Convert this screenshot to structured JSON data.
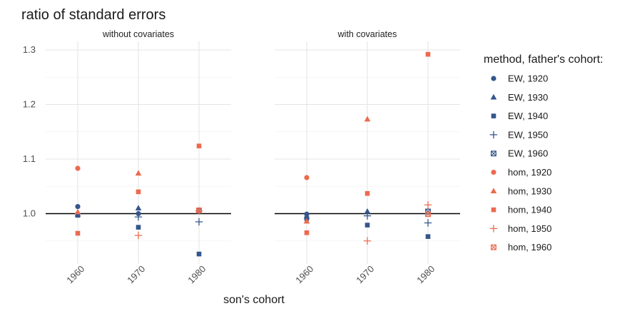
{
  "chart_data": {
    "type": "scatter",
    "title": "ratio of standard errors",
    "xlabel": "son's cohort",
    "ylabel": "",
    "x_categories": [
      "1960",
      "1970",
      "1980"
    ],
    "yticks": [
      "1.0",
      "1.1",
      "1.2",
      "1.3"
    ],
    "ylim": [
      0.905,
      1.315
    ],
    "reference_line_y": 1.0,
    "panels": [
      "without covariates",
      "with covariates"
    ],
    "legend": {
      "title": "method, father's cohort:",
      "placement": "right"
    },
    "colors": {
      "EW": "#34568b",
      "hom": "#ec6a4e"
    },
    "series": [
      {
        "name": "EW, 1920",
        "method": "EW",
        "shape": "circle",
        "values": [
          [
            1.013,
            1.0,
            null
          ],
          [
            0.999,
            null,
            null
          ]
        ]
      },
      {
        "name": "EW, 1930",
        "method": "EW",
        "shape": "triangle",
        "values": [
          [
            0.999,
            1.01,
            null
          ],
          [
            0.995,
            1.004,
            null
          ]
        ]
      },
      {
        "name": "EW, 1940",
        "method": "EW",
        "shape": "square",
        "values": [
          [
            0.997,
            0.975,
            0.926
          ],
          [
            0.991,
            0.979,
            0.958
          ]
        ]
      },
      {
        "name": "EW, 1950",
        "method": "EW",
        "shape": "plus",
        "values": [
          [
            null,
            0.994,
            0.985
          ],
          [
            null,
            0.996,
            0.983
          ]
        ]
      },
      {
        "name": "EW, 1960",
        "method": "EW",
        "shape": "boxx",
        "values": [
          [
            null,
            null,
            1.005
          ],
          [
            null,
            null,
            1.004
          ]
        ]
      },
      {
        "name": "hom, 1920",
        "method": "hom",
        "shape": "circle",
        "values": [
          [
            1.083,
            null,
            null
          ],
          [
            1.066,
            null,
            null
          ]
        ]
      },
      {
        "name": "hom, 1930",
        "method": "hom",
        "shape": "triangle",
        "values": [
          [
            1.003,
            1.074,
            null
          ],
          [
            0.986,
            1.173,
            null
          ]
        ]
      },
      {
        "name": "hom, 1940",
        "method": "hom",
        "shape": "square",
        "values": [
          [
            0.964,
            1.04,
            1.124
          ],
          [
            0.965,
            1.037,
            1.292
          ]
        ]
      },
      {
        "name": "hom, 1950",
        "method": "hom",
        "shape": "plus",
        "values": [
          [
            null,
            0.96,
            1.005
          ],
          [
            null,
            0.95,
            1.016
          ]
        ]
      },
      {
        "name": "hom, 1960",
        "method": "hom",
        "shape": "boxx",
        "values": [
          [
            null,
            null,
            1.006
          ],
          [
            null,
            null,
            0.999
          ]
        ]
      }
    ]
  }
}
